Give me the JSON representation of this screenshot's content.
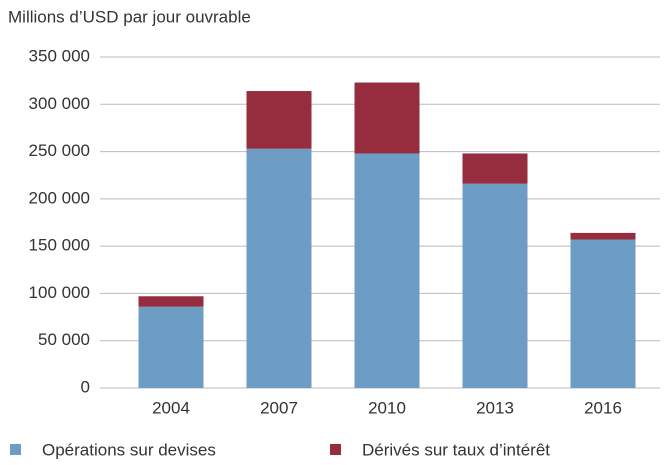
{
  "chart_data": {
    "type": "bar",
    "stacked": true,
    "y_axis_label": "Millions d’USD par jour ouvrable",
    "categories": [
      "2004",
      "2007",
      "2010",
      "2013",
      "2016"
    ],
    "series": [
      {
        "name": "Opérations sur devises",
        "color": "#6d9dc5",
        "values": [
          86000,
          253000,
          248000,
          216000,
          157000
        ]
      },
      {
        "name": "Dérivés sur taux d’intérêt",
        "color": "#962d3e",
        "values": [
          11000,
          61000,
          75000,
          32000,
          7000
        ]
      }
    ],
    "ylim": [
      0,
      350000
    ],
    "yticks": [
      0,
      {
        "value": 50000,
        "label": "50 000"
      },
      {
        "value": 100000,
        "label": "100 000"
      },
      {
        "value": 150000,
        "label": "150 000"
      },
      {
        "value": 200000,
        "label": "200 000"
      },
      {
        "value": 250000,
        "label": "250 000"
      },
      {
        "value": 300000,
        "label": "300 000"
      },
      {
        "value": 350000,
        "label": "350 000"
      }
    ],
    "grid": true
  }
}
